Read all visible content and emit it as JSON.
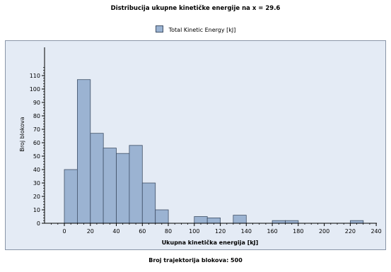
{
  "colors": {
    "bar_fill": "#9bb3d2",
    "bar_stroke": "#3f4f66",
    "plot_background": "#e4ebf5",
    "page_background": "#ffffff"
  },
  "chart_data": {
    "type": "bar",
    "title": "Distribucija ukupne kinetičke energije na x = 29.6",
    "legend": [
      "Total Kinetic Energy [kJ]"
    ],
    "legend_position": "top-center",
    "xlabel": "Ukupna kinetička energija [kJ]",
    "ylabel": "Broj blokova",
    "xlim": [
      -15,
      240
    ],
    "ylim": [
      0,
      118
    ],
    "grid": false,
    "x_ticks": [
      0,
      20,
      40,
      60,
      80,
      100,
      120,
      140,
      160,
      180,
      200,
      220,
      240
    ],
    "y_ticks": [
      0,
      10,
      20,
      30,
      40,
      50,
      60,
      70,
      80,
      90,
      100,
      110
    ],
    "bin_width": 10,
    "bins": [
      {
        "start": 0,
        "end": 10,
        "count": 40
      },
      {
        "start": 10,
        "end": 20,
        "count": 107
      },
      {
        "start": 20,
        "end": 30,
        "count": 67
      },
      {
        "start": 30,
        "end": 40,
        "count": 56
      },
      {
        "start": 40,
        "end": 50,
        "count": 52
      },
      {
        "start": 50,
        "end": 60,
        "count": 58
      },
      {
        "start": 60,
        "end": 70,
        "count": 30
      },
      {
        "start": 70,
        "end": 80,
        "count": 10
      },
      {
        "start": 100,
        "end": 110,
        "count": 5
      },
      {
        "start": 110,
        "end": 120,
        "count": 4
      },
      {
        "start": 130,
        "end": 140,
        "count": 6
      },
      {
        "start": 160,
        "end": 170,
        "count": 2
      },
      {
        "start": 170,
        "end": 180,
        "count": 2
      },
      {
        "start": 220,
        "end": 230,
        "count": 2
      }
    ]
  },
  "footer": "Broj trajektorija blokova: 500"
}
